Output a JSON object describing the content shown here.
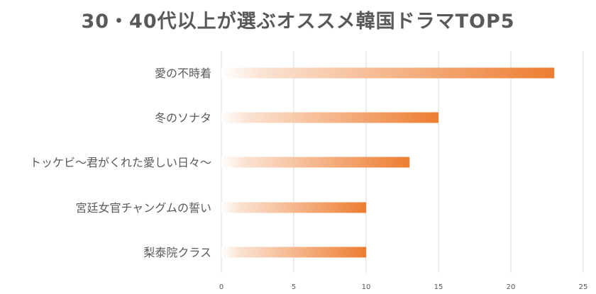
{
  "chart_data": {
    "type": "bar",
    "orientation": "horizontal",
    "title": "30・40代以上が選ぶオススメ韓国ドラマTOP5",
    "categories": [
      "愛の不時着",
      "冬のソナタ",
      "トッケビ〜君がくれた愛しい日々〜",
      "宮廷女官チャングムの誓い",
      "梨泰院クラス"
    ],
    "values": [
      23,
      15,
      13,
      10,
      10
    ],
    "xlim": [
      0,
      25
    ],
    "xticks": [
      0,
      5,
      10,
      15,
      20,
      25
    ],
    "grid": true,
    "legend": "none",
    "colors": {
      "bar_end": "#ED7D31",
      "bar_start": "#FFFFFF",
      "grid": "#D9D9D9",
      "text": "#595959"
    }
  }
}
